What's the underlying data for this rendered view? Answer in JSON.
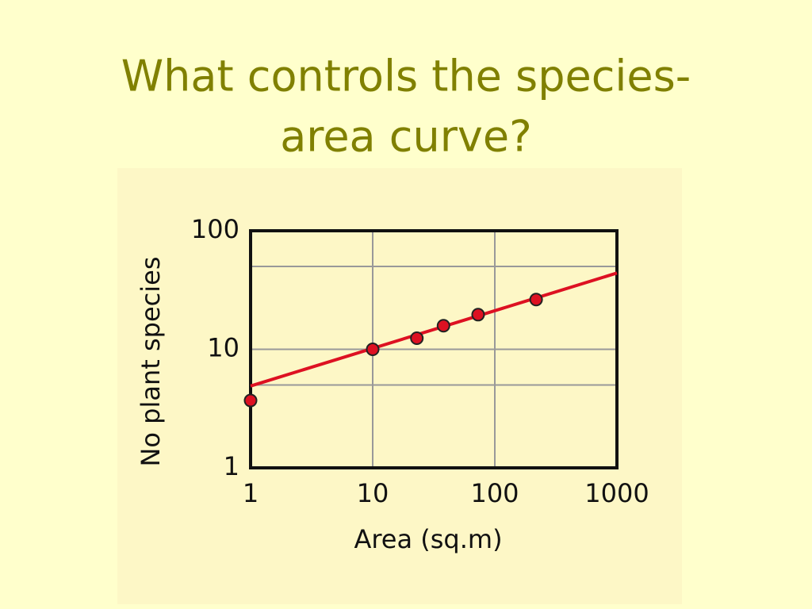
{
  "chart_data": {
    "type": "scatter",
    "title": [
      "What controls the species-",
      "area curve?"
    ],
    "x_label": "Area (sq.m)",
    "y_label": "No plant species",
    "xscale": "log",
    "yscale": "log",
    "xlim": [
      1,
      1000
    ],
    "ylim": [
      1,
      100
    ],
    "xticks": [
      1,
      10,
      100,
      1000
    ],
    "yticks": [
      1,
      10,
      100
    ],
    "yminorticks": [
      5,
      50
    ],
    "grid": true,
    "series": [
      {
        "type": "scatter",
        "color": "#dd1122",
        "x": [
          1,
          10,
          23,
          38,
          73,
          218
        ],
        "values": [
          3.7,
          10,
          12.4,
          15.8,
          19.6,
          26.3
        ]
      },
      {
        "type": "line",
        "color": "#dd1122",
        "x": [
          1,
          1000
        ],
        "values": [
          4.9,
          44
        ]
      }
    ]
  }
}
